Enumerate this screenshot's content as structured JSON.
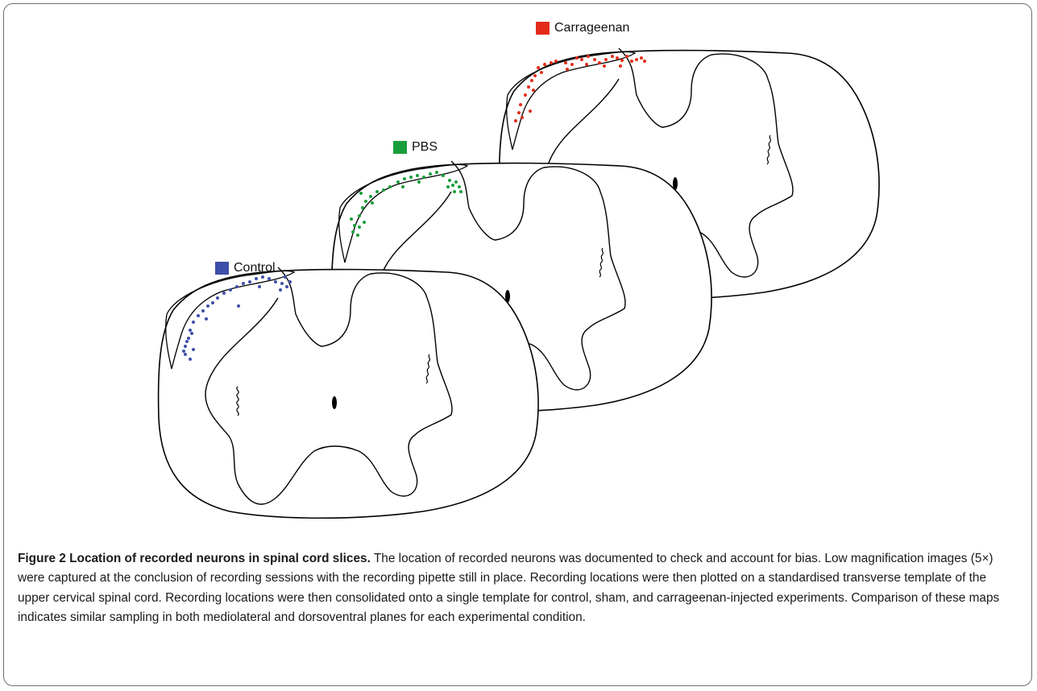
{
  "legend": [
    {
      "label": "Carrageenan",
      "color": "#e32b1a"
    },
    {
      "label": "PBS",
      "color": "#1a9e3c"
    },
    {
      "label": "Control",
      "color": "#3d4fa8"
    }
  ],
  "caption": {
    "title": "Figure 2 Location of recorded neurons in spinal cord slices.",
    "body": " The location of recorded neurons was documented to check and account for bias. Low magnification images (5×) were captured at the conclusion of recording sessions with the recording pipette still in place. Recording locations were then plotted on a standardised transverse template of the upper cervical spinal cord. Recording locations were then consolidated onto a single template for control, sham, and carrageenan-injected experiments. Comparison of these maps indicates similar sampling in both mediolateral and dorsoventral planes for each experimental condition."
  }
}
